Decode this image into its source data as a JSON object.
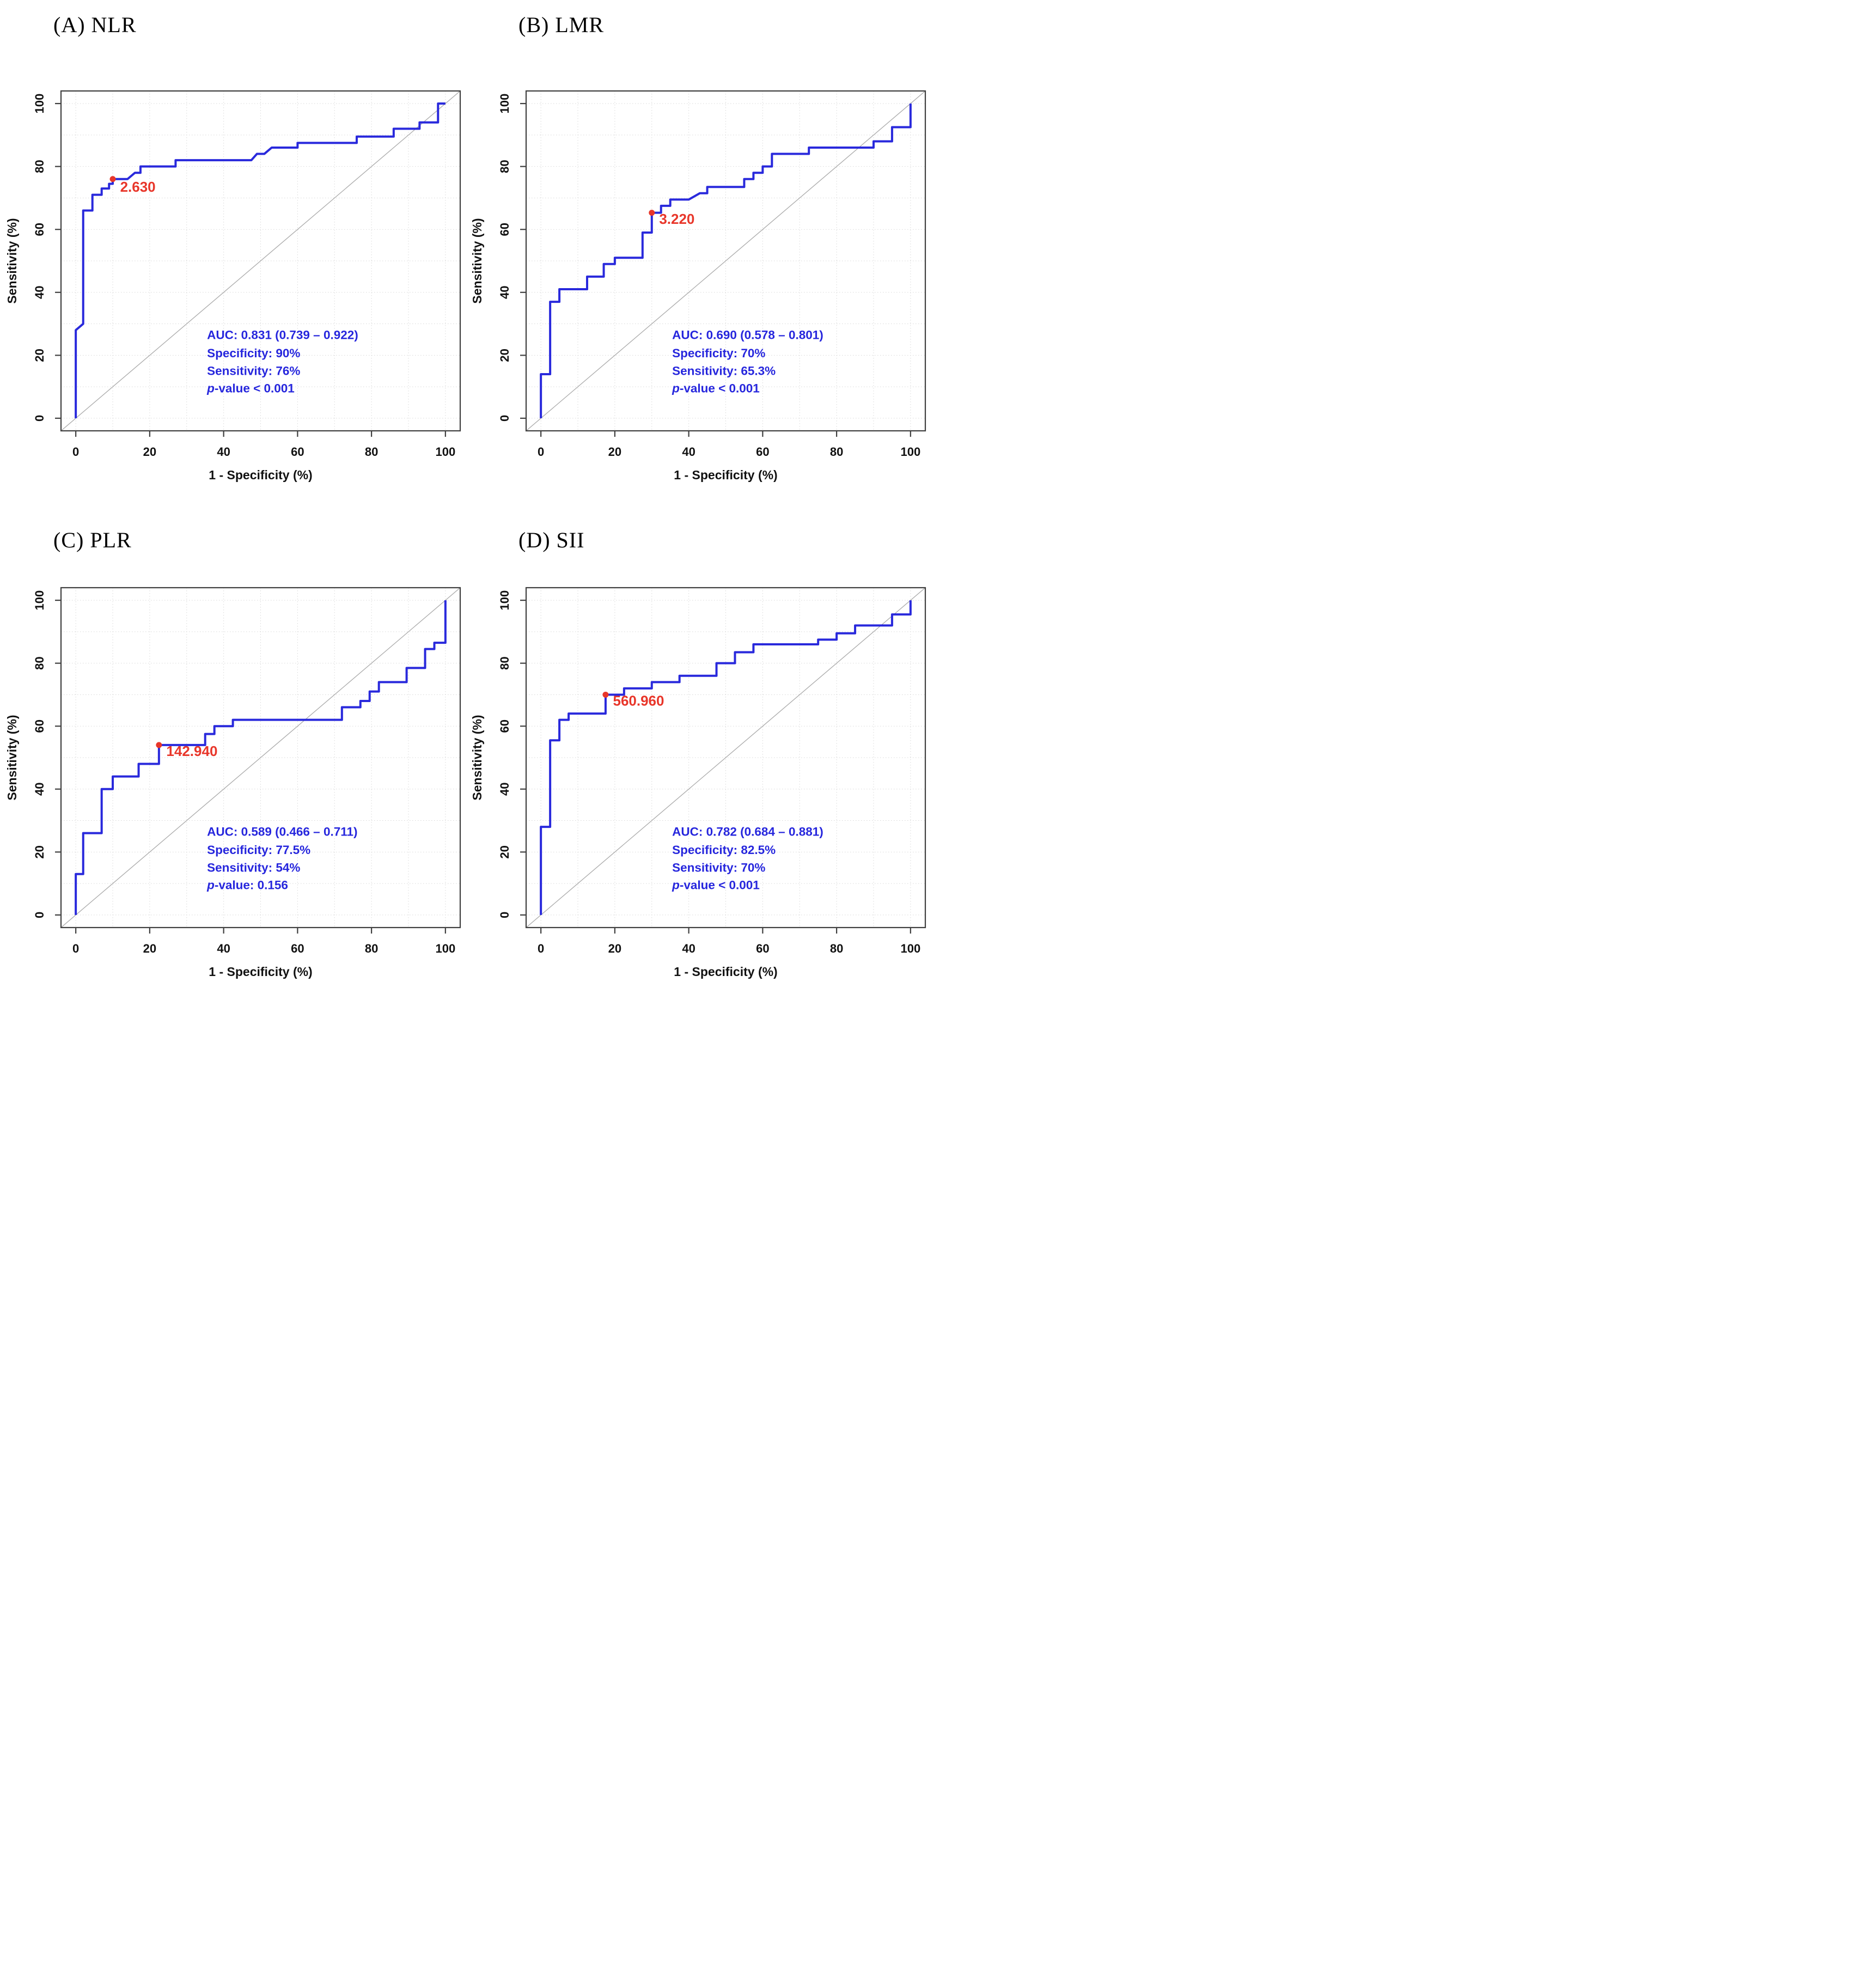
{
  "figure": {
    "background": "#ffffff",
    "axis": {
      "xlabel": "1 - Specificity (%)",
      "ylabel": "Sensitivity (%)",
      "ticks": [
        0,
        20,
        40,
        60,
        80,
        100
      ],
      "grid_step": 10,
      "range": [
        0,
        100
      ]
    },
    "colors": {
      "curve_blue": "#2929dc",
      "annotation_blue": "#2626dd",
      "cutoff_red": "#e8362a",
      "grid_gray": "#d7d7d7",
      "diagonal_gray": "#ababab",
      "box_gray": "#404040",
      "tick_text": "#111111"
    }
  },
  "chart_data": [
    {
      "type": "line",
      "id": "A",
      "title": "(A) NLR",
      "xlabel": "1 - Specificity (%)",
      "ylabel": "Sensitivity (%)",
      "xlim": [
        0,
        100
      ],
      "ylim": [
        0,
        100
      ],
      "grid": true,
      "reference_line": "diagonal y = x",
      "auc": 0.831,
      "auc_ci": [
        0.739,
        0.922
      ],
      "specificity_pct": 90,
      "sensitivity_pct": 76,
      "p_value": "< 0.001",
      "cutoff": {
        "value": 2.63,
        "label": "2.630",
        "x": 10,
        "y": 76,
        "label_x": 12,
        "label_y": 72
      },
      "annotation": {
        "auc": "AUC: 0.831 (0.739 – 0.922)",
        "specificity": "Specificity: 90%",
        "sensitivity": "Sensitivity: 76%",
        "p_italic": "p",
        "p_rest": "-value < 0.001"
      },
      "series": [
        {
          "name": "ROC curve",
          "points": [
            [
              0,
              0
            ],
            [
              0,
              28
            ],
            [
              2,
              30
            ],
            [
              2,
              66
            ],
            [
              4.5,
              66
            ],
            [
              4.5,
              71
            ],
            [
              7,
              71
            ],
            [
              7,
              73
            ],
            [
              9,
              73
            ],
            [
              9,
              74.5
            ],
            [
              10,
              74.5
            ],
            [
              10,
              76
            ],
            [
              14,
              76
            ],
            [
              16,
              78
            ],
            [
              17.5,
              78
            ],
            [
              17.5,
              80
            ],
            [
              27,
              80
            ],
            [
              27,
              82
            ],
            [
              47.5,
              82
            ],
            [
              49,
              84
            ],
            [
              51,
              84
            ],
            [
              53,
              86
            ],
            [
              60,
              86
            ],
            [
              60,
              87.5
            ],
            [
              76,
              87.5
            ],
            [
              76,
              89.5
            ],
            [
              86,
              89.5
            ],
            [
              86,
              92
            ],
            [
              93,
              92
            ],
            [
              93,
              94
            ],
            [
              98,
              94
            ],
            [
              98,
              100
            ],
            [
              100,
              100
            ]
          ]
        }
      ]
    },
    {
      "type": "line",
      "id": "B",
      "title": "(B) LMR",
      "xlabel": "1 - Specificity (%)",
      "ylabel": "Sensitivity (%)",
      "xlim": [
        0,
        100
      ],
      "ylim": [
        0,
        100
      ],
      "grid": true,
      "reference_line": "diagonal y = x",
      "auc": 0.69,
      "auc_ci": [
        0.578,
        0.801
      ],
      "specificity_pct": 70,
      "sensitivity_pct": 65.3,
      "p_value": "< 0.001",
      "cutoff": {
        "value": 3.22,
        "label": "3.220",
        "x": 30,
        "y": 65.3,
        "label_x": 32,
        "label_y": 61.8
      },
      "annotation": {
        "auc": "AUC: 0.690 (0.578 – 0.801)",
        "specificity": "Specificity: 70%",
        "sensitivity": "Sensitivity: 65.3%",
        "p_italic": "p",
        "p_rest": "-value < 0.001"
      },
      "series": [
        {
          "name": "ROC curve",
          "points": [
            [
              0,
              0
            ],
            [
              0,
              14
            ],
            [
              2.5,
              14
            ],
            [
              2.5,
              37
            ],
            [
              5,
              37
            ],
            [
              5,
              41
            ],
            [
              12.5,
              41
            ],
            [
              12.5,
              45
            ],
            [
              17,
              45
            ],
            [
              17,
              49
            ],
            [
              20,
              49
            ],
            [
              20,
              51
            ],
            [
              27.5,
              51
            ],
            [
              27.5,
              59
            ],
            [
              30,
              59
            ],
            [
              30,
              65.3
            ],
            [
              32.5,
              65.3
            ],
            [
              32.5,
              67.5
            ],
            [
              35,
              67.5
            ],
            [
              35,
              69.5
            ],
            [
              40,
              69.5
            ],
            [
              43,
              71.5
            ],
            [
              45,
              71.5
            ],
            [
              45,
              73.5
            ],
            [
              55,
              73.5
            ],
            [
              55,
              76
            ],
            [
              57.5,
              76
            ],
            [
              57.5,
              78
            ],
            [
              60,
              78
            ],
            [
              60,
              80
            ],
            [
              62.5,
              80
            ],
            [
              62.5,
              84
            ],
            [
              72.5,
              84
            ],
            [
              72.5,
              86
            ],
            [
              90,
              86
            ],
            [
              90,
              88
            ],
            [
              95,
              88
            ],
            [
              95,
              92.5
            ],
            [
              100,
              92.5
            ],
            [
              100,
              100
            ]
          ]
        }
      ]
    },
    {
      "type": "line",
      "id": "C",
      "title": "(C) PLR",
      "xlabel": "1 - Specificity (%)",
      "ylabel": "Sensitivity (%)",
      "xlim": [
        0,
        100
      ],
      "ylim": [
        0,
        100
      ],
      "grid": true,
      "reference_line": "diagonal y = x",
      "auc": 0.589,
      "auc_ci": [
        0.466,
        0.711
      ],
      "specificity_pct": 77.5,
      "sensitivity_pct": 54,
      "p_value": "0.156",
      "cutoff": {
        "value": 142.94,
        "label": "142.940",
        "x": 22.5,
        "y": 54,
        "label_x": 24.5,
        "label_y": 50.5
      },
      "annotation": {
        "auc": "AUC: 0.589 (0.466 – 0.711)",
        "specificity": "Specificity: 77.5%",
        "sensitivity": "Sensitivity: 54%",
        "p_italic": "p",
        "p_rest": "-value: 0.156"
      },
      "series": [
        {
          "name": "ROC curve",
          "points": [
            [
              0,
              0
            ],
            [
              0,
              13
            ],
            [
              2,
              13
            ],
            [
              2,
              26
            ],
            [
              7,
              26
            ],
            [
              7,
              40
            ],
            [
              10,
              40
            ],
            [
              10,
              44
            ],
            [
              17,
              44
            ],
            [
              17,
              48
            ],
            [
              22.5,
              48
            ],
            [
              22.5,
              54
            ],
            [
              35,
              54
            ],
            [
              35,
              57.5
            ],
            [
              37.5,
              57.5
            ],
            [
              37.5,
              60
            ],
            [
              42.5,
              60
            ],
            [
              42.5,
              62
            ],
            [
              72,
              62
            ],
            [
              72,
              66
            ],
            [
              77,
              66
            ],
            [
              77,
              68
            ],
            [
              79.5,
              68
            ],
            [
              79.5,
              71
            ],
            [
              82,
              71
            ],
            [
              82,
              74
            ],
            [
              89.5,
              74
            ],
            [
              89.5,
              78.5
            ],
            [
              94.5,
              78.5
            ],
            [
              94.5,
              84.5
            ],
            [
              97,
              84.5
            ],
            [
              97,
              86.5
            ],
            [
              100,
              86.5
            ],
            [
              100,
              100
            ]
          ]
        }
      ]
    },
    {
      "type": "line",
      "id": "D",
      "title": "(D) SII",
      "xlabel": "1 - Specificity (%)",
      "ylabel": "Sensitivity (%)",
      "xlim": [
        0,
        100
      ],
      "ylim": [
        0,
        100
      ],
      "grid": true,
      "reference_line": "diagonal y = x",
      "auc": 0.782,
      "auc_ci": [
        0.684,
        0.881
      ],
      "specificity_pct": 82.5,
      "sensitivity_pct": 70,
      "p_value": "< 0.001",
      "cutoff": {
        "value": 560.96,
        "label": "560.960",
        "x": 17.5,
        "y": 70,
        "label_x": 19.5,
        "label_y": 66.5
      },
      "annotation": {
        "auc": "AUC: 0.782 (0.684 – 0.881)",
        "specificity": "Specificity: 82.5%",
        "sensitivity": "Sensitivity: 70%",
        "p_italic": "p",
        "p_rest": "-value < 0.001"
      },
      "series": [
        {
          "name": "ROC curve",
          "points": [
            [
              0,
              0
            ],
            [
              0,
              28
            ],
            [
              2.5,
              28
            ],
            [
              2.5,
              55.5
            ],
            [
              5,
              55.5
            ],
            [
              5,
              62
            ],
            [
              7.5,
              62
            ],
            [
              7.5,
              64
            ],
            [
              17.5,
              64
            ],
            [
              17.5,
              70
            ],
            [
              22.5,
              70
            ],
            [
              22.5,
              72
            ],
            [
              30,
              72
            ],
            [
              30,
              74
            ],
            [
              37.5,
              74
            ],
            [
              37.5,
              76
            ],
            [
              47.5,
              76
            ],
            [
              47.5,
              80
            ],
            [
              52.5,
              80
            ],
            [
              52.5,
              83.5
            ],
            [
              57.5,
              83.5
            ],
            [
              57.5,
              86
            ],
            [
              75,
              86
            ],
            [
              75,
              87.5
            ],
            [
              80,
              87.5
            ],
            [
              80,
              89.5
            ],
            [
              85,
              89.5
            ],
            [
              85,
              92
            ],
            [
              95,
              92
            ],
            [
              95,
              95.5
            ],
            [
              100,
              95.5
            ],
            [
              100,
              100
            ]
          ]
        }
      ]
    }
  ],
  "annotation_layout": {
    "x": 35.5,
    "line_y": [
      25.2,
      19.4,
      13.7,
      8.2
    ]
  }
}
